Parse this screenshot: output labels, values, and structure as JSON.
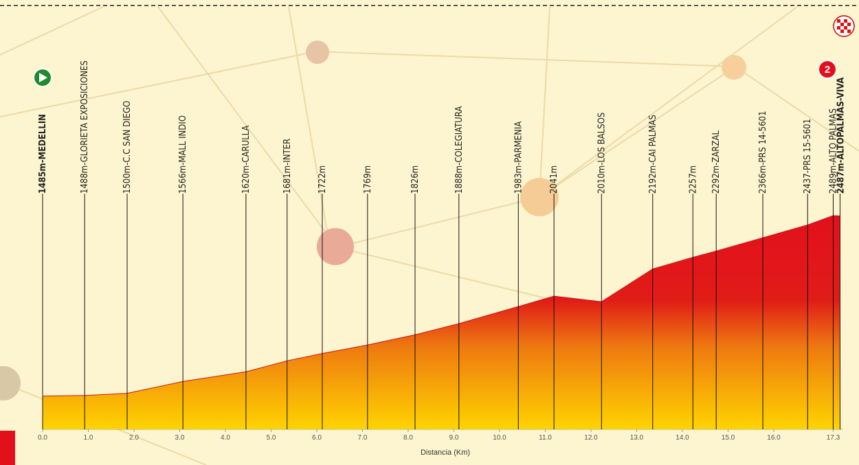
{
  "chart_data": {
    "type": "area",
    "x_label": "Distancia (Km)",
    "climb_category": "2",
    "x": [
      0.0,
      0.92,
      1.85,
      3.07,
      4.45,
      5.35,
      6.12,
      7.11,
      8.15,
      9.11,
      10.41,
      11.19,
      12.23,
      13.35,
      14.23,
      14.74,
      15.76,
      16.74,
      17.3,
      17.45
    ],
    "elevation": [
      1485,
      1488,
      1500,
      1566,
      1620,
      1681,
      1722,
      1769,
      1826,
      1888,
      1983,
      2041,
      2010,
      2192,
      2257,
      2292,
      2366,
      2437,
      2489,
      2487
    ],
    "labels": [
      "1485m-MEDELLIN",
      "1488m-GLORIETA EXPOSICIONES",
      "1500m-C.C SAN DIEGO",
      "1566m-MALL INDIO",
      "1620m-CARULLA",
      "1681m-INTER",
      "1722m",
      "1769m",
      "1826m",
      "1888m-COLEGIATURA",
      "1983m-PARMENIA",
      "2041m",
      "2010m-LOS BALSOS",
      "2192m-CAI PALMAS",
      "2257m",
      "2292m-ZARZAL",
      "2366m-PRS 14-5601",
      "2437-PRS 15-5601",
      "2489m-ALTO PALMAS",
      "2487m-ALTOPALMAS-VIVA"
    ],
    "xlim": [
      0,
      17.5
    ],
    "ylim": [
      1300,
      2500
    ],
    "xticks": [
      {
        "value": 0,
        "label": "0.0"
      },
      {
        "value": 1,
        "label": "1.0"
      },
      {
        "value": 2,
        "label": "2.0"
      },
      {
        "value": 3,
        "label": "3.0"
      },
      {
        "value": 4,
        "label": "4.0"
      },
      {
        "value": 5,
        "label": "5.0"
      },
      {
        "value": 6,
        "label": "6.0"
      },
      {
        "value": 7,
        "label": "7.0"
      },
      {
        "value": 8,
        "label": "8.0"
      },
      {
        "value": 9,
        "label": "9.0"
      },
      {
        "value": 10,
        "label": "10.0"
      },
      {
        "value": 11,
        "label": "11.0"
      },
      {
        "value": 12,
        "label": "12.0"
      },
      {
        "value": 13,
        "label": "13.0"
      },
      {
        "value": 14,
        "label": "14.0"
      },
      {
        "value": 15,
        "label": "15.0"
      },
      {
        "value": 16,
        "label": "16.0"
      },
      17.3
    ]
  }
}
